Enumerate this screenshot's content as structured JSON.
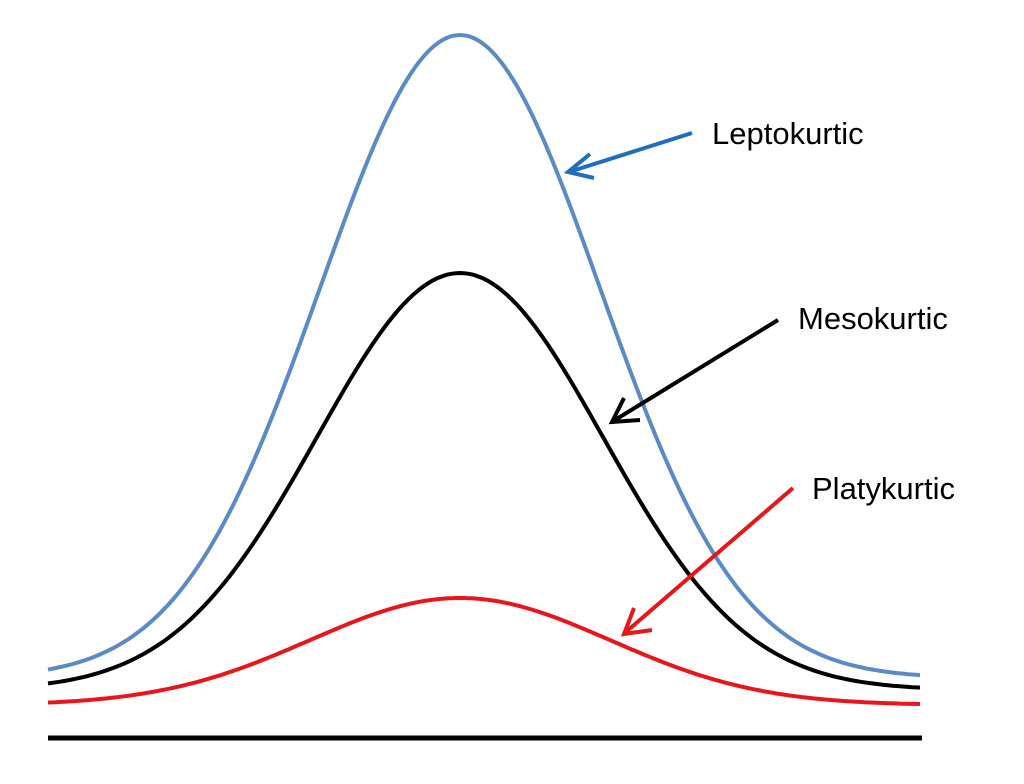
{
  "labels": {
    "leptokurtic": "Leptokurtic",
    "mesokurtic": "Mesokurtic",
    "platykurtic": "Platykurtic"
  },
  "colors": {
    "leptokurtic_curve": "#5b8ac6",
    "leptokurtic_arrow": "#1f6fbf",
    "mesokurtic": "#000000",
    "platykurtic": "#e8151b",
    "baseline": "#000000"
  }
}
